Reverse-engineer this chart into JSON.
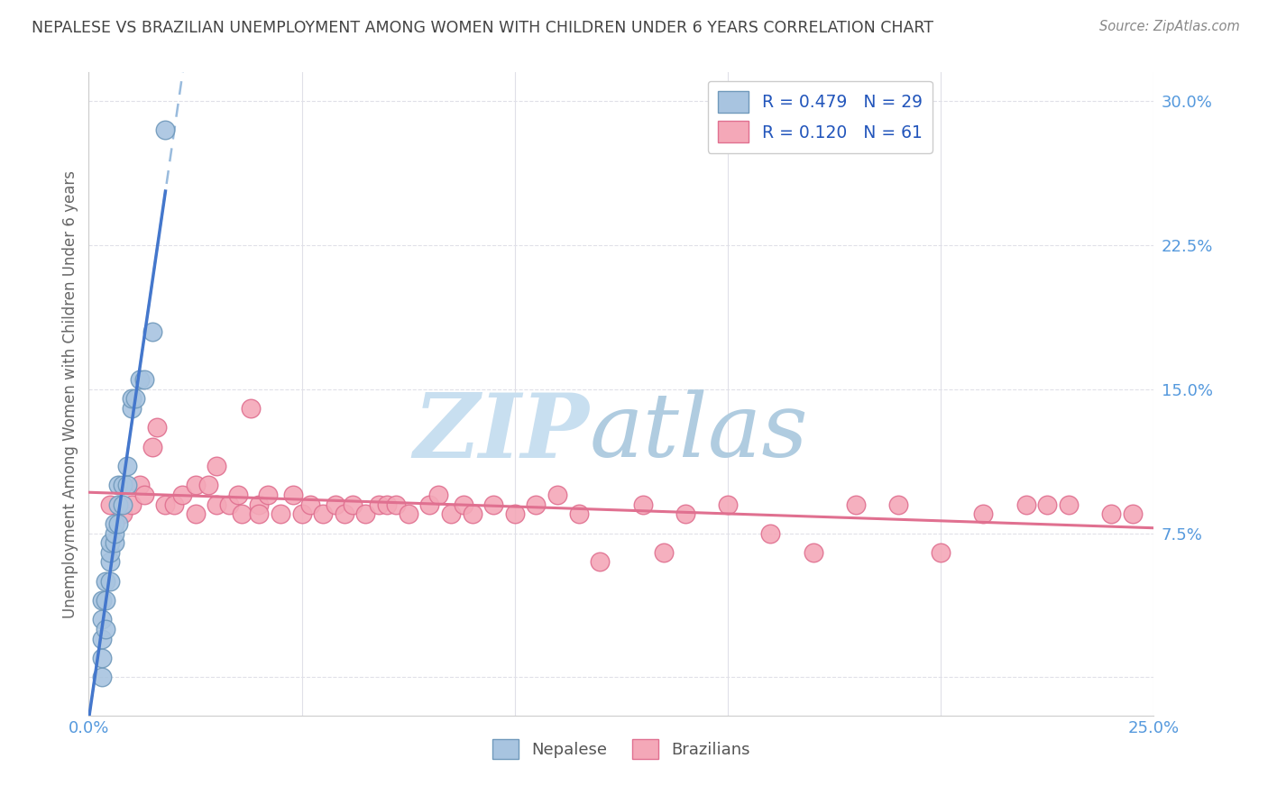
{
  "title": "NEPALESE VS BRAZILIAN UNEMPLOYMENT AMONG WOMEN WITH CHILDREN UNDER 6 YEARS CORRELATION CHART",
  "source": "Source: ZipAtlas.com",
  "ylabel": "Unemployment Among Women with Children Under 6 years",
  "xlim": [
    0.0,
    0.25
  ],
  "ylim": [
    -0.02,
    0.315
  ],
  "yticks": [
    0.0,
    0.075,
    0.15,
    0.225,
    0.3
  ],
  "ytick_labels": [
    "",
    "7.5%",
    "15.0%",
    "22.5%",
    "30.0%"
  ],
  "xticks": [
    0.0,
    0.05,
    0.1,
    0.15,
    0.2,
    0.25
  ],
  "xtick_labels": [
    "0.0%",
    "",
    "",
    "",
    "",
    "25.0%"
  ],
  "legend_entries": [
    {
      "label": "R = 0.479   N = 29",
      "facecolor": "#a8c4e0",
      "edgecolor": "#7099bb"
    },
    {
      "label": "R = 0.120   N = 61",
      "facecolor": "#f4a8b8",
      "edgecolor": "#e07090"
    }
  ],
  "nepalese_x": [
    0.003,
    0.003,
    0.003,
    0.003,
    0.003,
    0.004,
    0.004,
    0.004,
    0.005,
    0.005,
    0.005,
    0.005,
    0.006,
    0.006,
    0.006,
    0.007,
    0.007,
    0.007,
    0.008,
    0.008,
    0.009,
    0.009,
    0.01,
    0.01,
    0.011,
    0.012,
    0.013,
    0.015,
    0.018
  ],
  "nepalese_y": [
    0.0,
    0.01,
    0.02,
    0.03,
    0.04,
    0.025,
    0.04,
    0.05,
    0.05,
    0.06,
    0.065,
    0.07,
    0.07,
    0.075,
    0.08,
    0.08,
    0.09,
    0.1,
    0.09,
    0.1,
    0.1,
    0.11,
    0.14,
    0.145,
    0.145,
    0.155,
    0.155,
    0.18,
    0.285
  ],
  "brazilian_x": [
    0.005,
    0.008,
    0.01,
    0.012,
    0.013,
    0.015,
    0.016,
    0.018,
    0.02,
    0.022,
    0.025,
    0.025,
    0.028,
    0.03,
    0.03,
    0.033,
    0.035,
    0.036,
    0.038,
    0.04,
    0.04,
    0.042,
    0.045,
    0.048,
    0.05,
    0.052,
    0.055,
    0.058,
    0.06,
    0.062,
    0.065,
    0.068,
    0.07,
    0.072,
    0.075,
    0.08,
    0.082,
    0.085,
    0.088,
    0.09,
    0.095,
    0.1,
    0.105,
    0.11,
    0.115,
    0.12,
    0.13,
    0.135,
    0.14,
    0.15,
    0.16,
    0.17,
    0.18,
    0.19,
    0.2,
    0.21,
    0.22,
    0.225,
    0.23,
    0.24,
    0.245
  ],
  "brazilian_y": [
    0.09,
    0.085,
    0.09,
    0.1,
    0.095,
    0.12,
    0.13,
    0.09,
    0.09,
    0.095,
    0.085,
    0.1,
    0.1,
    0.09,
    0.11,
    0.09,
    0.095,
    0.085,
    0.14,
    0.09,
    0.085,
    0.095,
    0.085,
    0.095,
    0.085,
    0.09,
    0.085,
    0.09,
    0.085,
    0.09,
    0.085,
    0.09,
    0.09,
    0.09,
    0.085,
    0.09,
    0.095,
    0.085,
    0.09,
    0.085,
    0.09,
    0.085,
    0.09,
    0.095,
    0.085,
    0.06,
    0.09,
    0.065,
    0.085,
    0.09,
    0.075,
    0.065,
    0.09,
    0.09,
    0.065,
    0.085,
    0.09,
    0.09,
    0.09,
    0.085,
    0.085
  ],
  "nepalese_color": "#a8c4e0",
  "nepalese_edge": "#7099bb",
  "brazilian_color": "#f4a8b8",
  "brazilian_edge": "#e07090",
  "trend_nepalese_color": "#4477cc",
  "trend_nepalese_dash_color": "#99bbdd",
  "trend_brazilian_color": "#e07090",
  "watermark_zip": "ZIP",
  "watermark_atlas": "atlas",
  "watermark_color_zip": "#c8dff0",
  "watermark_color_atlas": "#b0cce0",
  "background_color": "#ffffff",
  "grid_color": "#e0e0e8",
  "title_color": "#444444",
  "tick_color": "#5599dd"
}
